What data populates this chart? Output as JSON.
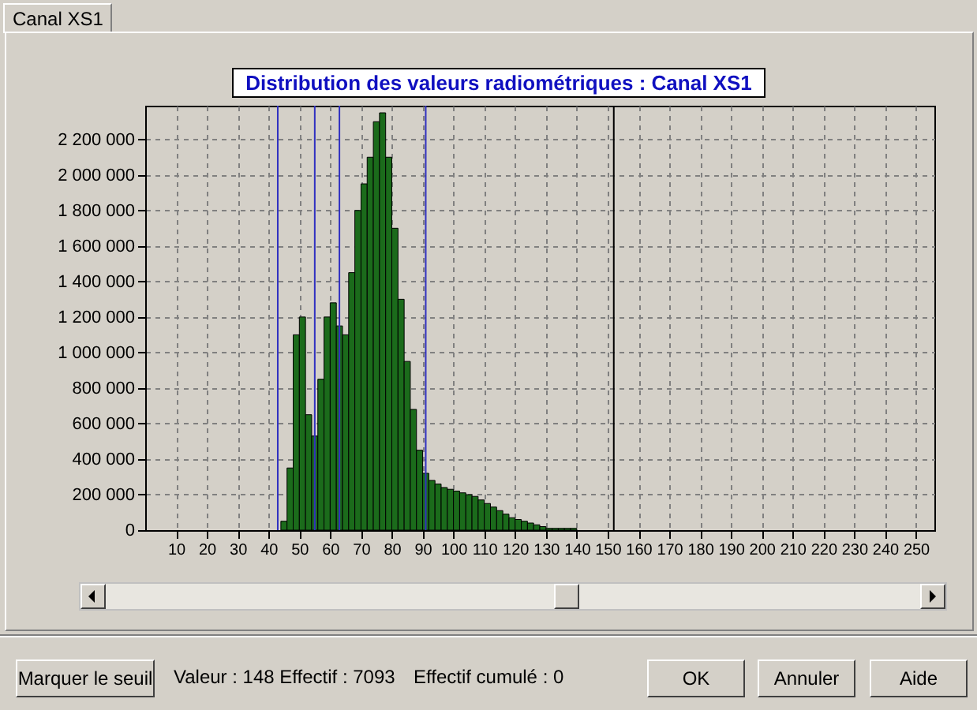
{
  "chart_data": {
    "type": "histogram",
    "title": "Distribution des valeurs radiométriques : Canal XS1",
    "bins": [
      44,
      46,
      48,
      50,
      52,
      54,
      56,
      58,
      60,
      62,
      64,
      66,
      68,
      70,
      72,
      74,
      76,
      78,
      80,
      82,
      84,
      86,
      88,
      90,
      92,
      94,
      96,
      98,
      100,
      102,
      104,
      106,
      108,
      110,
      112,
      114,
      116,
      118,
      120,
      122,
      124,
      126,
      128,
      130,
      132,
      134,
      136,
      138,
      140
    ],
    "values": [
      50000,
      350000,
      1100000,
      1200000,
      650000,
      530000,
      850000,
      1200000,
      1280000,
      1150000,
      1100000,
      1450000,
      1800000,
      1950000,
      2100000,
      2300000,
      2350000,
      2100000,
      1700000,
      1300000,
      950000,
      680000,
      450000,
      320000,
      280000,
      260000,
      240000,
      230000,
      220000,
      210000,
      200000,
      190000,
      170000,
      150000,
      130000,
      110000,
      90000,
      70000,
      60000,
      50000,
      40000,
      30000,
      20000,
      10000,
      10000,
      10000,
      10000,
      10000
    ],
    "color": "#1b6b1b",
    "xlim": [
      0,
      256
    ],
    "xticks": [
      10,
      20,
      30,
      40,
      50,
      60,
      70,
      80,
      90,
      100,
      110,
      120,
      130,
      140,
      150,
      160,
      170,
      180,
      190,
      200,
      210,
      220,
      230,
      240,
      250
    ],
    "ylim": [
      0,
      2390000
    ],
    "yticks": [
      0,
      {
        "value": 200000,
        "label": "200 000"
      },
      {
        "value": 400000,
        "label": "400 000"
      },
      {
        "value": 600000,
        "label": "600 000"
      },
      {
        "value": 800000,
        "label": "800 000"
      },
      {
        "value": 1000000,
        "label": "1 000 000"
      },
      {
        "value": 1200000,
        "label": "1 200 000"
      },
      {
        "value": 1400000,
        "label": "1 400 000"
      },
      {
        "value": 1600000,
        "label": "1 600 000"
      },
      {
        "value": 1800000,
        "label": "1 800 000"
      },
      {
        "value": 2000000,
        "label": "2 000 000"
      },
      {
        "value": 2200000,
        "label": "2 200 000"
      }
    ],
    "grid": true,
    "line_style": "dashed",
    "ref_lines": [
      {
        "axis": "x",
        "value": 43,
        "color": "#3030c0"
      },
      {
        "axis": "x",
        "value": 55,
        "color": "#3030c0"
      },
      {
        "axis": "x",
        "value": 63,
        "color": "#3030c0"
      },
      {
        "axis": "x",
        "value": 91,
        "color": "#3030c0"
      },
      {
        "axis": "x",
        "value": 152,
        "color": "#000000"
      }
    ],
    "annotations": [
      "Canal XS1",
      "Marquer le seuil",
      "Valeur : 148 Effectif : 7093",
      "Effectif cumulé : 0",
      "OK",
      "Annuler",
      "Aide"
    ]
  }
}
